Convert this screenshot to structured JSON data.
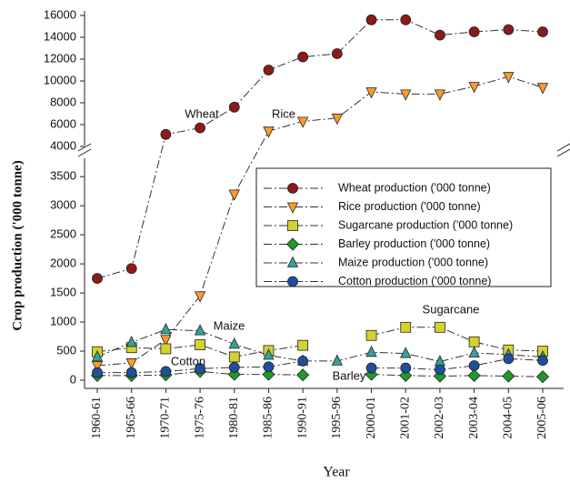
{
  "chart_data": {
    "type": "line",
    "y_label": "Crop production ('000 tonne)",
    "x_label": "Year",
    "categories": [
      "1960-61",
      "1965-66",
      "1970-71",
      "1975-76",
      "1980-81",
      "1985-86",
      "1990-91",
      "1995-96",
      "2000-01",
      "2001-02",
      "2002-03",
      "2003-04",
      "2004-05",
      "2005-06"
    ],
    "ylim": [
      0,
      16000
    ],
    "ybreak": [
      3800,
      4000
    ],
    "yticks": [
      0,
      500,
      1000,
      1500,
      2000,
      2500,
      3000,
      3500,
      4000,
      6000,
      8000,
      10000,
      12000,
      14000,
      16000
    ],
    "series": [
      {
        "name": "Wheat production ('000 tonne)",
        "color": "#8b1a1a",
        "marker": "circle",
        "values": [
          1750,
          1920,
          5100,
          5700,
          7600,
          11000,
          12200,
          12500,
          15600,
          15600,
          14200,
          14500,
          14700,
          14500
        ]
      },
      {
        "name": "Rice production ('000 tonne)",
        "color": "#ff9a2e",
        "marker": "triangle-down",
        "values": [
          250,
          300,
          700,
          1450,
          3200,
          5400,
          6300,
          6600,
          9000,
          8800,
          8800,
          9500,
          10400,
          9400
        ]
      },
      {
        "name": "Sugarcane production ('000 tonne)",
        "color": "#d4d22e",
        "marker": "square",
        "values": [
          490,
          560,
          540,
          610,
          400,
          510,
          600,
          null,
          770,
          910,
          910,
          660,
          520,
          500
        ]
      },
      {
        "name": "Barley production ('000 tonne)",
        "color": "#1f9a2a",
        "marker": "diamond",
        "values": [
          80,
          80,
          90,
          150,
          100,
          100,
          90,
          null,
          100,
          80,
          70,
          80,
          70,
          60
        ]
      },
      {
        "name": "Maize production ('000 tonne)",
        "color": "#35a39a",
        "marker": "triangle-up",
        "values": [
          400,
          650,
          870,
          850,
          620,
          430,
          330,
          330,
          480,
          460,
          320,
          470,
          440,
          400
        ]
      },
      {
        "name": "Cotton production ('000 tonne)",
        "color": "#1f4f9c",
        "marker": "circle",
        "values": [
          130,
          130,
          150,
          200,
          220,
          230,
          330,
          null,
          210,
          210,
          180,
          250,
          370,
          340
        ]
      }
    ],
    "annotations": [
      "Wheat",
      "Rice",
      "Maize",
      "Cotton",
      "Barley",
      "Sugarcane"
    ]
  }
}
